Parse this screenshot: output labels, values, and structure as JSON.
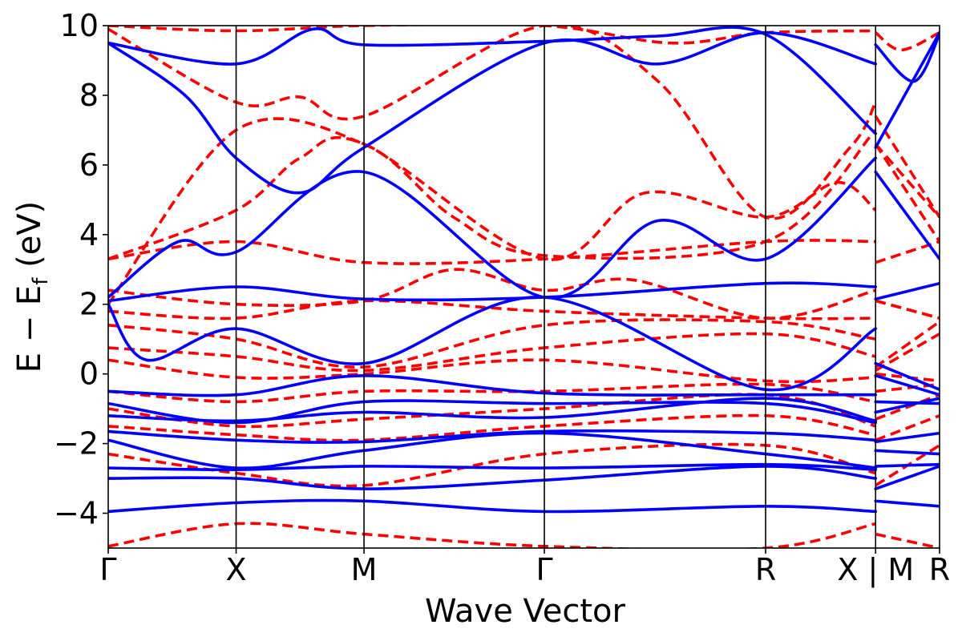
{
  "chart_data": {
    "type": "line",
    "title": "",
    "xlabel": "Wave Vector",
    "ylabel": "E − E",
    "ylabel_subscript": "f",
    "ylabel_unit": "(eV)",
    "ylim": [
      -5,
      10
    ],
    "yticks": [
      -4,
      -2,
      0,
      2,
      4,
      6,
      8,
      10
    ],
    "ytick_labels": [
      "−4",
      "−2",
      "0",
      "2",
      "4",
      "6",
      "8",
      "10"
    ],
    "xlim": [
      0,
      6.5
    ],
    "kpoints": [
      {
        "label": "Γ",
        "x": 0
      },
      {
        "label": "X",
        "x": 1
      },
      {
        "label": "M",
        "x": 2
      },
      {
        "label": "Γ",
        "x": 3.41
      },
      {
        "label": "R",
        "x": 5.14
      },
      {
        "label": "X",
        "x": 6.0
      },
      {
        "label": "M",
        "x": 6.0
      },
      {
        "label": "R",
        "x": 6.5
      }
    ],
    "kpoint_combined_label": "X | M",
    "series": [
      {
        "name": "blue (solid)",
        "color": "#0000ff",
        "style": "solid",
        "bands": [
          [
            [
              0,
              -3.95
            ],
            [
              1,
              -3.7
            ],
            [
              2,
              -3.65
            ],
            [
              3.41,
              -3.95
            ],
            [
              5.14,
              -3.8
            ],
            [
              6,
              -3.95
            ],
            [
              6,
              -3.65
            ],
            [
              6.5,
              -3.8
            ]
          ],
          [
            [
              0,
              -3.0
            ],
            [
              1,
              -3.0
            ],
            [
              2,
              -3.3
            ],
            [
              3.41,
              -3.05
            ],
            [
              5.14,
              -2.65
            ],
            [
              6,
              -3.0
            ],
            [
              6,
              -3.3
            ],
            [
              6.5,
              -2.65
            ]
          ],
          [
            [
              0,
              -2.7
            ],
            [
              1,
              -2.75
            ],
            [
              2,
              -2.65
            ],
            [
              3.41,
              -2.7
            ],
            [
              5.14,
              -2.6
            ],
            [
              6,
              -2.75
            ],
            [
              6,
              -2.65
            ],
            [
              6.5,
              -2.6
            ]
          ],
          [
            [
              0,
              -1.9
            ],
            [
              1,
              -2.7
            ],
            [
              2,
              -2.2
            ],
            [
              3.41,
              -1.7
            ],
            [
              5.14,
              -2.3
            ],
            [
              6,
              -2.7
            ],
            [
              6,
              -2.2
            ],
            [
              6.5,
              -2.3
            ]
          ],
          [
            [
              0,
              -1.65
            ],
            [
              1,
              -1.9
            ],
            [
              2,
              -1.95
            ],
            [
              3.41,
              -1.65
            ],
            [
              5.14,
              -1.7
            ],
            [
              6,
              -1.9
            ],
            [
              6,
              -1.95
            ],
            [
              6.5,
              -1.7
            ]
          ],
          [
            [
              0,
              -1.2
            ],
            [
              1,
              -1.35
            ],
            [
              2,
              -1.1
            ],
            [
              3.41,
              -1.25
            ],
            [
              5.14,
              -0.7
            ],
            [
              6,
              -1.35
            ],
            [
              6,
              -1.1
            ],
            [
              6.5,
              -0.7
            ]
          ],
          [
            [
              0,
              -0.85
            ],
            [
              1,
              -1.4
            ],
            [
              2,
              -0.8
            ],
            [
              3.41,
              -0.85
            ],
            [
              5.14,
              -0.85
            ],
            [
              6,
              -1.4
            ],
            [
              6,
              -0.8
            ],
            [
              6.5,
              -0.85
            ]
          ],
          [
            [
              0,
              -0.5
            ],
            [
              1,
              -0.6
            ],
            [
              2,
              -0.05
            ],
            [
              3.41,
              -0.55
            ],
            [
              5.14,
              -0.6
            ],
            [
              6,
              -0.6
            ],
            [
              6,
              -0.05
            ],
            [
              6.5,
              -0.6
            ]
          ],
          [
            [
              0,
              2.0
            ],
            [
              0.3,
              0.4
            ],
            [
              1,
              1.3
            ],
            [
              2,
              0.3
            ],
            [
              3.41,
              2.2
            ],
            [
              5.14,
              -0.45
            ],
            [
              6,
              1.3
            ],
            [
              6,
              0.3
            ],
            [
              6.5,
              -0.45
            ]
          ],
          [
            [
              0,
              2.1
            ],
            [
              1,
              2.5
            ],
            [
              2,
              2.15
            ],
            [
              3.41,
              2.2
            ],
            [
              5.14,
              2.6
            ],
            [
              6,
              2.5
            ],
            [
              6,
              2.15
            ],
            [
              6.5,
              2.6
            ]
          ],
          [
            [
              0,
              2.2
            ],
            [
              0.55,
              3.8
            ],
            [
              1,
              3.5
            ],
            [
              2,
              5.8
            ],
            [
              3.41,
              2.2
            ],
            [
              4.3,
              4.4
            ],
            [
              5.14,
              3.3
            ],
            [
              6,
              6.2
            ],
            [
              6,
              5.8
            ],
            [
              6.5,
              3.3
            ]
          ],
          [
            [
              0,
              9.5
            ],
            [
              0.6,
              8.0
            ],
            [
              1,
              6.2
            ],
            [
              1.5,
              5.2
            ],
            [
              2,
              6.5
            ],
            [
              3.41,
              9.5
            ],
            [
              4.3,
              8.9
            ],
            [
              5.14,
              9.8
            ],
            [
              6,
              8.9
            ],
            [
              6,
              6.5
            ],
            [
              6.5,
              9.8
            ]
          ],
          [
            [
              0,
              9.5
            ],
            [
              1,
              8.9
            ],
            [
              1.6,
              9.9
            ],
            [
              2,
              9.45
            ],
            [
              3.41,
              9.55
            ],
            [
              4.3,
              9.7
            ],
            [
              5.14,
              9.75
            ],
            [
              6,
              6.9
            ],
            [
              6,
              9.45
            ],
            [
              6.3,
              8.4
            ],
            [
              6.5,
              9.75
            ]
          ]
        ]
      },
      {
        "name": "red (dashed)",
        "color": "#ff0000",
        "style": "dashed",
        "bands": [
          [
            [
              0,
              -4.95
            ],
            [
              1,
              -4.3
            ],
            [
              2,
              -4.6
            ],
            [
              3.41,
              -4.95
            ],
            [
              5.14,
              -5.0
            ],
            [
              6,
              -4.3
            ],
            [
              6,
              -4.6
            ],
            [
              6.5,
              -5.0
            ]
          ],
          [
            [
              0,
              -2.3
            ],
            [
              1,
              -2.85
            ],
            [
              2,
              -3.2
            ],
            [
              3.41,
              -2.3
            ],
            [
              5.14,
              -2.05
            ],
            [
              6,
              -2.85
            ],
            [
              6,
              -3.2
            ],
            [
              6.5,
              -2.05
            ]
          ],
          [
            [
              0,
              -1.5
            ],
            [
              1,
              -1.75
            ],
            [
              2,
              -1.9
            ],
            [
              3.41,
              -1.5
            ],
            [
              5.14,
              -1.2
            ],
            [
              6,
              -1.75
            ],
            [
              6,
              -1.9
            ],
            [
              6.5,
              -1.2
            ]
          ],
          [
            [
              0,
              -1.0
            ],
            [
              1,
              -1.5
            ],
            [
              2,
              -1.3
            ],
            [
              3.41,
              -1.0
            ],
            [
              5.14,
              -0.6
            ],
            [
              6,
              -1.5
            ],
            [
              6,
              -1.3
            ],
            [
              6.5,
              -0.6
            ]
          ],
          [
            [
              0,
              -0.5
            ],
            [
              1,
              -0.8
            ],
            [
              2,
              -0.5
            ],
            [
              3.41,
              -0.5
            ],
            [
              5.14,
              -0.3
            ],
            [
              6,
              -0.8
            ],
            [
              6,
              -0.5
            ],
            [
              6.5,
              -0.3
            ]
          ],
          [
            [
              0,
              0.4
            ],
            [
              1,
              -0.1
            ],
            [
              2,
              0.0
            ],
            [
              3.41,
              0.4
            ],
            [
              5.14,
              -0.2
            ],
            [
              6,
              -0.1
            ],
            [
              6,
              0.0
            ],
            [
              6.5,
              -0.2
            ]
          ],
          [
            [
              0,
              0.75
            ],
            [
              1,
              0.5
            ],
            [
              2,
              0.1
            ],
            [
              3.41,
              0.75
            ],
            [
              5.14,
              1.15
            ],
            [
              6,
              0.5
            ],
            [
              6,
              0.1
            ],
            [
              6.5,
              1.15
            ]
          ],
          [
            [
              0,
              1.4
            ],
            [
              1,
              1.0
            ],
            [
              2,
              0.2
            ],
            [
              3.41,
              1.4
            ],
            [
              5.14,
              1.5
            ],
            [
              6,
              1.0
            ],
            [
              6,
              0.2
            ],
            [
              6.5,
              1.5
            ]
          ],
          [
            [
              0,
              1.8
            ],
            [
              1,
              1.6
            ],
            [
              2,
              2.1
            ],
            [
              3.41,
              1.8
            ],
            [
              5.14,
              1.6
            ],
            [
              6,
              1.6
            ],
            [
              6,
              2.1
            ],
            [
              6.5,
              1.6
            ]
          ],
          [
            [
              0,
              2.4
            ],
            [
              1,
              2.0
            ],
            [
              2,
              2.1
            ],
            [
              2.7,
              3.0
            ],
            [
              3.41,
              2.4
            ],
            [
              4.1,
              2.7
            ],
            [
              5.14,
              1.6
            ],
            [
              6,
              2.4
            ],
            [
              6,
              2.1
            ],
            [
              6.5,
              1.6
            ]
          ],
          [
            [
              0,
              3.3
            ],
            [
              1,
              3.8
            ],
            [
              2,
              3.2
            ],
            [
              3.41,
              3.3
            ],
            [
              5.14,
              3.8
            ],
            [
              6,
              3.8
            ],
            [
              6,
              3.2
            ],
            [
              6.5,
              3.8
            ]
          ],
          [
            [
              0,
              3.3
            ],
            [
              1,
              4.7
            ],
            [
              1.5,
              6.2
            ],
            [
              2,
              6.6
            ],
            [
              3.41,
              3.3
            ],
            [
              4.2,
              5.2
            ],
            [
              5.14,
              4.5
            ],
            [
              5.7,
              5.5
            ],
            [
              6,
              4.7
            ],
            [
              6,
              6.6
            ],
            [
              6.5,
              4.5
            ]
          ],
          [
            [
              0,
              2.0
            ],
            [
              1,
              7.0
            ],
            [
              2,
              6.6
            ],
            [
              2.7,
              4.5
            ],
            [
              3.41,
              3.4
            ],
            [
              5.14,
              3.8
            ],
            [
              6,
              7.0
            ],
            [
              6,
              6.6
            ],
            [
              6.5,
              3.8
            ]
          ],
          [
            [
              0,
              9.9
            ],
            [
              1,
              7.8
            ],
            [
              1.5,
              7.95
            ],
            [
              2,
              7.4
            ],
            [
              3.41,
              10.0
            ],
            [
              4.3,
              8.4
            ],
            [
              5.14,
              4.5
            ],
            [
              5.8,
              6.5
            ],
            [
              6,
              7.8
            ],
            [
              6,
              7.4
            ],
            [
              6.5,
              4.5
            ]
          ],
          [
            [
              0,
              10.0
            ],
            [
              1,
              9.85
            ],
            [
              2,
              10.0
            ],
            [
              3.41,
              10.0
            ],
            [
              4.4,
              9.5
            ],
            [
              5.14,
              9.8
            ],
            [
              6,
              9.85
            ],
            [
              6,
              9.8
            ],
            [
              6.2,
              9.3
            ],
            [
              6.5,
              9.8
            ]
          ]
        ]
      }
    ]
  }
}
